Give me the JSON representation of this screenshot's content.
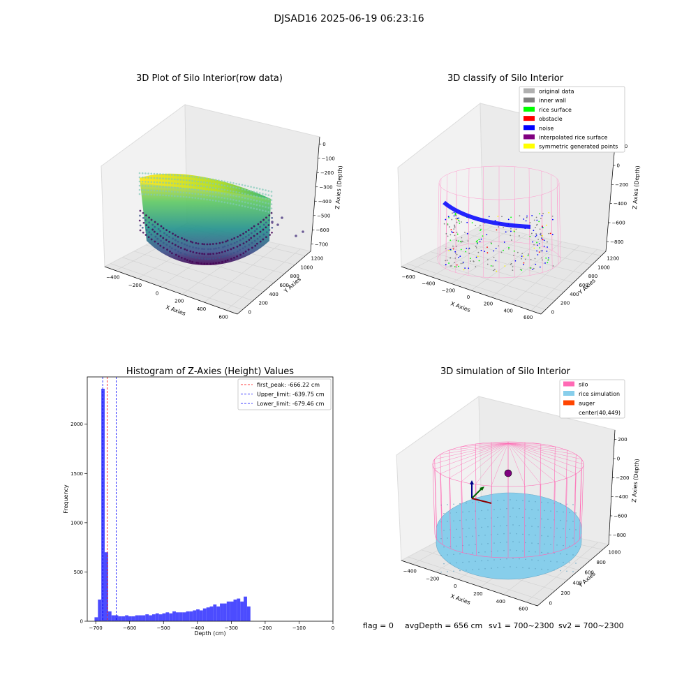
{
  "figure": {
    "suptitle": "DJSAD16 2025-06-19 06:23:16",
    "info": {
      "flag": "flag = 0",
      "avg_depth": "avgDepth = 656 cm",
      "sv1": "sv1 = 700~2300",
      "sv2": "sv2 = 700~2300"
    }
  },
  "colors": {
    "silo": "#ff69b4",
    "rice_simulation": "#87ceeb",
    "auger": "#ff4500",
    "histogram_bar": "#4c4cff",
    "first_peak_line": "#ff0000",
    "limit_lines": "#0000ff",
    "original_data": "#b0b0b0",
    "inner_wall": "#808080",
    "rice_surface": "#00ff00",
    "obstacle": "#ff0000",
    "noise": "#0000ff",
    "interpolated_rice_surface": "#800080",
    "symmetric_generated_points": "#ffff00"
  },
  "chart_data": [
    {
      "type": "scatter",
      "title": "3D Plot of Silo Interior(row data)",
      "xlabel": "X Axies",
      "ylabel": "Y Axies",
      "zlabel": "Z Axies (Depth)",
      "xticks": [
        "−400",
        "−200",
        "0",
        "200",
        "400",
        "600"
      ],
      "yticks": [
        "0",
        "200",
        "400",
        "600",
        "800",
        "1000",
        "1200"
      ],
      "zticks": [
        "0",
        "−100",
        "−200",
        "−300",
        "−400",
        "−500",
        "−600",
        "−700"
      ],
      "colormap": "viridis"
    },
    {
      "type": "scatter",
      "title": "3D classify of Silo Interior",
      "xlabel": "X Axies",
      "ylabel": "Y Axies",
      "zlabel": "Z Axies (Depth)",
      "xticks": [
        "−600",
        "−400",
        "−200",
        "0",
        "200",
        "400",
        "600"
      ],
      "yticks": [
        "0",
        "200",
        "400",
        "600",
        "800",
        "1000",
        "1200"
      ],
      "zticks": [
        "200",
        "0",
        "−200",
        "−400",
        "−600",
        "−800"
      ],
      "legend": [
        "original data",
        "inner wall",
        "rice surface",
        "obstacle",
        "noise",
        "interpolated rice surface",
        "symmetric generated points"
      ],
      "legend_position": "top-right"
    },
    {
      "type": "bar",
      "title": "Histogram of Z-Axies (Height) Values",
      "xlabel": "Depth (cm)",
      "ylabel": "Frequency",
      "xlim": [
        -725,
        0
      ],
      "ylim": [
        0,
        2480
      ],
      "xticks": [
        -700,
        -600,
        -500,
        -400,
        -300,
        -200,
        -100,
        0
      ],
      "xtick_labels": [
        "−700",
        "−600",
        "−500",
        "−400",
        "−300",
        "−200",
        "−100",
        "0"
      ],
      "yticks": [
        0,
        500,
        1000,
        1500,
        2000
      ],
      "yticks_labels": [
        "0",
        "500",
        "1000",
        "1500",
        "2000"
      ],
      "bin_start": -703.5,
      "bin_width": 10,
      "values": [
        40,
        220,
        2360,
        700,
        100,
        60,
        60,
        50,
        50,
        60,
        50,
        50,
        60,
        60,
        60,
        70,
        60,
        70,
        80,
        70,
        80,
        90,
        80,
        100,
        90,
        90,
        90,
        100,
        100,
        110,
        120,
        110,
        130,
        140,
        150,
        170,
        150,
        180,
        180,
        200,
        200,
        220,
        230,
        200,
        250,
        150
      ],
      "vlines": [
        {
          "x": -666.22,
          "label": "first_peak: -666.22 cm",
          "color": "#ff0000"
        },
        {
          "x": -639.75,
          "label": "Upper_limit: -639.75 cm",
          "color": "#0000ff"
        },
        {
          "x": -679.46,
          "label": "Lower_limit: -679.46 cm",
          "color": "#0000ff"
        }
      ],
      "legend_position": "top-right"
    },
    {
      "type": "scatter",
      "title": "3D simulation of Silo Interior",
      "xlabel": "X Axies",
      "ylabel": "Y Axies",
      "zlabel": "Z Axies (Depth)",
      "xticks": [
        "−400",
        "−200",
        "0",
        "200",
        "400",
        "600"
      ],
      "yticks": [
        "0",
        "200",
        "400",
        "600",
        "800",
        "1000"
      ],
      "zticks": [
        "200",
        "0",
        "−200",
        "−400",
        "−600",
        "−800"
      ],
      "legend": [
        "silo",
        "rice simulation",
        "auger",
        "center(40,449)"
      ],
      "legend_position": "top-right"
    }
  ]
}
